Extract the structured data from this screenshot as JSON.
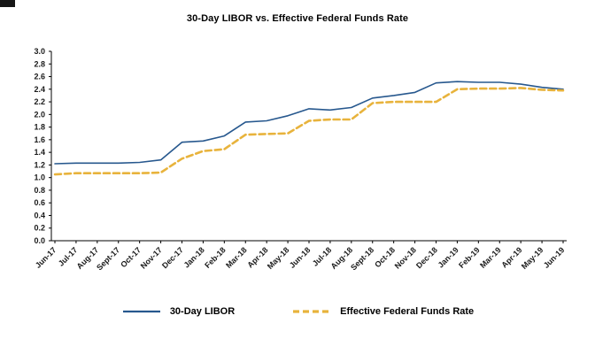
{
  "chart_data": {
    "type": "line",
    "title": "30-Day LIBOR vs. Effective Federal Funds Rate",
    "xlabel": "",
    "ylabel": "",
    "ylim": [
      0.0,
      3.0
    ],
    "ytick": 0.2,
    "grid": false,
    "legend_position": "bottom",
    "categories": [
      "Jun-17",
      "Jul-17",
      "Aug-17",
      "Sept-17",
      "Oct-17",
      "Nov-17",
      "Dec-17",
      "Jan-18",
      "Feb-18",
      "Mar-18",
      "Apr-18",
      "May-18",
      "Jun-18",
      "Jul-18",
      "Aug-18",
      "Sept-18",
      "Oct-18",
      "Nov-18",
      "Dec-18",
      "Jan-19",
      "Feb-19",
      "Mar-19",
      "Apr-19",
      "May-19",
      "Jun-19"
    ],
    "series": [
      {
        "name": "30-Day LIBOR",
        "color": "#27588e",
        "width": 1.6,
        "dash": "",
        "values": [
          1.22,
          1.23,
          1.23,
          1.23,
          1.24,
          1.28,
          1.56,
          1.58,
          1.66,
          1.88,
          1.9,
          1.98,
          2.09,
          2.07,
          2.11,
          2.26,
          2.3,
          2.35,
          2.5,
          2.52,
          2.51,
          2.51,
          2.48,
          2.43,
          2.4
        ]
      },
      {
        "name": "Effective Federal Funds Rate",
        "color": "#e8b33c",
        "width": 2.6,
        "dash": "7 4",
        "values": [
          1.05,
          1.07,
          1.07,
          1.07,
          1.07,
          1.08,
          1.3,
          1.42,
          1.45,
          1.68,
          1.69,
          1.7,
          1.9,
          1.92,
          1.92,
          2.18,
          2.2,
          2.2,
          2.2,
          2.4,
          2.41,
          2.41,
          2.42,
          2.39,
          2.38
        ]
      }
    ]
  }
}
